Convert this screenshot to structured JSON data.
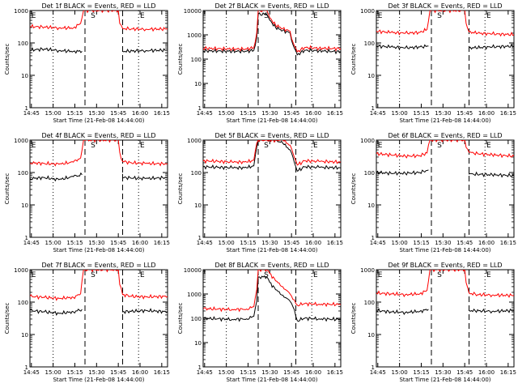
{
  "figure": {
    "panel_order": [
      "1f",
      "2f",
      "3f",
      "4f",
      "5f",
      "6f",
      "7f",
      "8f",
      "9f"
    ]
  },
  "chart_data": [
    {
      "type": "line",
      "panel": "1f",
      "title": "Det 1f BLACK = Events, RED = LLD",
      "xlabel": "Start Time (21-Feb-08 14:44:00)",
      "ylabel": "Counts/sec",
      "y_scale": "log",
      "ylim": [
        1,
        1000
      ],
      "y_ticks": [
        "1",
        "10",
        "100",
        "1000"
      ],
      "x_ticks": [
        "14:45",
        "15:00",
        "15:15",
        "15:30",
        "15:45",
        "16:00",
        "16:15"
      ],
      "xlim": [
        0,
        95
      ],
      "dotted_lines_x": [
        16,
        75
      ],
      "dashed_lines_x": [
        38,
        64
      ],
      "markers": [
        {
          "label": "E",
          "x": 1
        },
        {
          "label": "S",
          "x": 42
        },
        {
          "label": "E",
          "x": 76
        }
      ],
      "series": [
        {
          "name": "Events",
          "color": "#000000",
          "x": [
            0,
            10,
            20,
            30,
            36,
            36,
            62,
            64,
            64,
            80,
            95
          ],
          "y": [
            60,
            65,
            58,
            55,
            55,
            null,
            null,
            60,
            55,
            58,
            60
          ]
        },
        {
          "name": "LLD",
          "color": "#ff0000",
          "x": [
            0,
            10,
            20,
            30,
            35,
            37,
            38,
            61,
            62,
            64,
            70,
            80,
            95
          ],
          "y": [
            320,
            310,
            290,
            290,
            400,
            1000,
            1000,
            1000,
            400,
            280,
            270,
            265,
            270
          ]
        }
      ]
    },
    {
      "type": "line",
      "panel": "2f",
      "title": "Det 2f BLACK = Events, RED = LLD",
      "xlabel": "Start Time (21-Feb-08 14:44:00)",
      "ylabel": "Counts/sec",
      "y_scale": "log",
      "ylim": [
        1,
        10000
      ],
      "y_ticks": [
        "1",
        "10",
        "100",
        "1000",
        "10000"
      ],
      "x_ticks": [
        "14:45",
        "15:00",
        "15:15",
        "15:30",
        "15:45",
        "16:00",
        "16:15"
      ],
      "xlim": [
        0,
        95
      ],
      "dotted_lines_x": [
        16,
        75
      ],
      "dashed_lines_x": [
        38,
        64
      ],
      "markers": [
        {
          "label": "S",
          "x": 42
        },
        {
          "label": "E",
          "x": 76
        }
      ],
      "series": [
        {
          "name": "Events",
          "color": "#000000",
          "x": [
            0,
            10,
            20,
            30,
            35,
            37,
            38,
            44,
            46,
            50,
            55,
            60,
            62,
            64,
            65,
            70,
            80,
            95
          ],
          "y": [
            220,
            215,
            210,
            210,
            230,
            800,
            7000,
            7000,
            4000,
            2000,
            1500,
            1200,
            400,
            220,
            150,
            230,
            220,
            200
          ]
        },
        {
          "name": "LLD",
          "color": "#ff0000",
          "x": [
            0,
            10,
            20,
            30,
            35,
            37,
            38,
            44,
            46,
            50,
            55,
            60,
            62,
            64,
            65,
            70,
            80,
            95
          ],
          "y": [
            280,
            270,
            260,
            260,
            300,
            1200,
            10000,
            10000,
            5000,
            2500,
            1800,
            1400,
            500,
            280,
            200,
            300,
            280,
            270
          ]
        }
      ]
    },
    {
      "type": "line",
      "panel": "3f",
      "title": "Det 3f BLACK = Events, RED = LLD",
      "xlabel": "Start Time (21-Feb-08 14:44:00)",
      "ylabel": "Counts/sec",
      "y_scale": "log",
      "ylim": [
        1,
        1000
      ],
      "y_ticks": [
        "1",
        "10",
        "100",
        "1000"
      ],
      "x_ticks": [
        "14:45",
        "15:00",
        "15:15",
        "15:30",
        "15:45",
        "16:00",
        "16:15"
      ],
      "xlim": [
        0,
        95
      ],
      "dotted_lines_x": [
        16,
        75
      ],
      "dashed_lines_x": [
        38,
        64
      ],
      "markers": [
        {
          "label": "E",
          "x": 1
        },
        {
          "label": "S",
          "x": 42
        },
        {
          "label": "E",
          "x": 76
        }
      ],
      "series": [
        {
          "name": "Events",
          "color": "#000000",
          "x": [
            0,
            10,
            20,
            30,
            36,
            36,
            62,
            64,
            64,
            80,
            95
          ],
          "y": [
            80,
            75,
            70,
            75,
            80,
            null,
            null,
            80,
            70,
            75,
            80
          ]
        },
        {
          "name": "LLD",
          "color": "#ff0000",
          "x": [
            0,
            10,
            20,
            30,
            35,
            37,
            38,
            61,
            62,
            64,
            70,
            80,
            95
          ],
          "y": [
            230,
            210,
            200,
            210,
            260,
            1000,
            1000,
            1000,
            400,
            220,
            200,
            190,
            180
          ]
        }
      ]
    },
    {
      "type": "line",
      "panel": "4f",
      "title": "Det 4f BLACK = Events, RED = LLD",
      "xlabel": "Start Time (21-Feb-08 14:44:00)",
      "ylabel": "Counts/sec",
      "y_scale": "log",
      "ylim": [
        1,
        1000
      ],
      "y_ticks": [
        "1",
        "10",
        "100",
        "1000"
      ],
      "x_ticks": [
        "14:45",
        "15:00",
        "15:15",
        "15:30",
        "15:45",
        "16:00",
        "16:15"
      ],
      "xlim": [
        0,
        95
      ],
      "dotted_lines_x": [
        16,
        75
      ],
      "dashed_lines_x": [
        38,
        64
      ],
      "markers": [
        {
          "label": "E",
          "x": 1
        },
        {
          "label": "S",
          "x": 42
        },
        {
          "label": "E",
          "x": 76
        }
      ],
      "series": [
        {
          "name": "Events",
          "color": "#000000",
          "x": [
            0,
            10,
            20,
            30,
            36,
            36,
            62,
            64,
            64,
            80,
            95
          ],
          "y": [
            65,
            70,
            60,
            75,
            85,
            null,
            null,
            90,
            70,
            65,
            70
          ]
        },
        {
          "name": "LLD",
          "color": "#ff0000",
          "x": [
            0,
            10,
            20,
            30,
            35,
            37,
            38,
            61,
            62,
            64,
            70,
            80,
            95
          ],
          "y": [
            200,
            190,
            180,
            210,
            280,
            1000,
            1000,
            1000,
            420,
            220,
            200,
            190,
            185
          ]
        }
      ]
    },
    {
      "type": "line",
      "panel": "5f",
      "title": "Det 5f BLACK = Events, RED = LLD",
      "xlabel": "Start Time (21-Feb-08 14:44:00)",
      "ylabel": "Counts/sec",
      "y_scale": "log",
      "ylim": [
        1,
        1000
      ],
      "y_ticks": [
        "1",
        "10",
        "100",
        "1000"
      ],
      "x_ticks": [
        "14:45",
        "15:00",
        "15:15",
        "15:30",
        "15:45",
        "16:00",
        "16:15"
      ],
      "xlim": [
        0,
        95
      ],
      "dotted_lines_x": [
        16,
        75
      ],
      "dashed_lines_x": [
        38,
        64
      ],
      "markers": [
        {
          "label": "S",
          "x": 42
        },
        {
          "label": "E",
          "x": 76
        }
      ],
      "series": [
        {
          "name": "Events",
          "color": "#000000",
          "x": [
            0,
            10,
            20,
            30,
            35,
            37,
            38,
            44,
            46,
            50,
            55,
            60,
            62,
            64,
            65,
            70,
            80,
            95
          ],
          "y": [
            150,
            145,
            140,
            140,
            160,
            600,
            1000,
            1000,
            1000,
            1000,
            800,
            500,
            300,
            150,
            110,
            150,
            145,
            140
          ]
        },
        {
          "name": "LLD",
          "color": "#ff0000",
          "x": [
            0,
            10,
            20,
            30,
            35,
            37,
            38,
            44,
            46,
            50,
            55,
            60,
            62,
            64,
            65,
            70,
            80,
            95
          ],
          "y": [
            230,
            220,
            210,
            210,
            240,
            800,
            1000,
            1000,
            1000,
            1000,
            1000,
            700,
            400,
            230,
            170,
            230,
            220,
            210
          ]
        }
      ]
    },
    {
      "type": "line",
      "panel": "6f",
      "title": "Det 6f BLACK = Events, RED = LLD",
      "xlabel": "Start Time (21-Feb-08 14:44:00)",
      "ylabel": "Counts/sec",
      "y_scale": "log",
      "ylim": [
        1,
        1000
      ],
      "y_ticks": [
        "1",
        "10",
        "100",
        "1000"
      ],
      "x_ticks": [
        "14:45",
        "15:00",
        "15:15",
        "15:30",
        "15:45",
        "16:00",
        "16:15"
      ],
      "xlim": [
        0,
        95
      ],
      "dotted_lines_x": [
        16,
        75
      ],
      "dashed_lines_x": [
        38,
        64
      ],
      "markers": [
        {
          "label": "E",
          "x": 1
        },
        {
          "label": "S",
          "x": 42
        },
        {
          "label": "E",
          "x": 76
        }
      ],
      "series": [
        {
          "name": "Events",
          "color": "#000000",
          "x": [
            0,
            10,
            20,
            30,
            36,
            36,
            62,
            64,
            64,
            80,
            95
          ],
          "y": [
            100,
            95,
            95,
            100,
            120,
            null,
            null,
            140,
            90,
            85,
            80
          ]
        },
        {
          "name": "LLD",
          "color": "#ff0000",
          "x": [
            0,
            10,
            20,
            30,
            35,
            37,
            38,
            61,
            62,
            64,
            70,
            80,
            95
          ],
          "y": [
            380,
            350,
            320,
            330,
            400,
            1000,
            1000,
            1000,
            600,
            420,
            380,
            350,
            320
          ]
        }
      ]
    },
    {
      "type": "line",
      "panel": "7f",
      "title": "Det 7f BLACK = Events, RED = LLD",
      "xlabel": "Start Time (21-Feb-08 14:44:00)",
      "ylabel": "Counts/sec",
      "y_scale": "log",
      "ylim": [
        1,
        1000
      ],
      "y_ticks": [
        "1",
        "10",
        "100",
        "1000"
      ],
      "x_ticks": [
        "14:45",
        "15:00",
        "15:15",
        "15:30",
        "15:45",
        "16:00",
        "16:15"
      ],
      "xlim": [
        0,
        95
      ],
      "dotted_lines_x": [
        16,
        75
      ],
      "dashed_lines_x": [
        38,
        64
      ],
      "markers": [
        {
          "label": "E",
          "x": 1
        },
        {
          "label": "S",
          "x": 42
        },
        {
          "label": "E",
          "x": 76
        }
      ],
      "series": [
        {
          "name": "Events",
          "color": "#000000",
          "x": [
            0,
            10,
            20,
            30,
            36,
            36,
            62,
            64,
            64,
            80,
            95
          ],
          "y": [
            55,
            50,
            45,
            50,
            60,
            null,
            null,
            65,
            50,
            55,
            50
          ]
        },
        {
          "name": "LLD",
          "color": "#ff0000",
          "x": [
            0,
            10,
            20,
            30,
            35,
            37,
            38,
            61,
            62,
            64,
            70,
            80,
            95
          ],
          "y": [
            150,
            140,
            130,
            140,
            180,
            1000,
            1000,
            1000,
            350,
            170,
            150,
            145,
            150
          ]
        }
      ]
    },
    {
      "type": "line",
      "panel": "8f",
      "title": "Det 8f BLACK = Events, RED = LLD",
      "xlabel": "Start Time (21-Feb-08 14:44:00)",
      "ylabel": "Counts/sec",
      "y_scale": "log",
      "ylim": [
        1,
        10000
      ],
      "y_ticks": [
        "1",
        "10",
        "100",
        "1000",
        "10000"
      ],
      "x_ticks": [
        "14:45",
        "15:00",
        "15:15",
        "15:30",
        "15:45",
        "16:00",
        "16:15"
      ],
      "xlim": [
        0,
        95
      ],
      "dotted_lines_x": [
        16,
        75
      ],
      "dashed_lines_x": [
        38,
        64
      ],
      "markers": [
        {
          "label": "S",
          "x": 42
        },
        {
          "label": "E",
          "x": 76
        }
      ],
      "series": [
        {
          "name": "Events",
          "color": "#000000",
          "x": [
            0,
            10,
            20,
            30,
            35,
            37,
            38,
            44,
            46,
            50,
            55,
            60,
            62,
            64,
            65,
            70,
            80,
            95
          ],
          "y": [
            100,
            95,
            90,
            95,
            120,
            500,
            5000,
            5000,
            3000,
            1500,
            900,
            500,
            300,
            120,
            80,
            100,
            95,
            90
          ]
        },
        {
          "name": "LLD",
          "color": "#ff0000",
          "x": [
            0,
            10,
            20,
            30,
            35,
            37,
            38,
            44,
            46,
            50,
            55,
            60,
            62,
            64,
            65,
            70,
            80,
            95
          ],
          "y": [
            250,
            240,
            230,
            240,
            300,
            1500,
            10000,
            10000,
            7000,
            3500,
            2000,
            1000,
            600,
            400,
            350,
            400,
            380,
            370
          ]
        }
      ]
    },
    {
      "type": "line",
      "panel": "9f",
      "title": "Det 9f BLACK = Events, RED = LLD",
      "xlabel": "Start Time (21-Feb-08 14:44:00)",
      "ylabel": "Counts/sec",
      "y_scale": "log",
      "ylim": [
        1,
        1000
      ],
      "y_ticks": [
        "1",
        "10",
        "100",
        "1000"
      ],
      "x_ticks": [
        "14:45",
        "15:00",
        "15:15",
        "15:30",
        "15:45",
        "16:00",
        "16:15"
      ],
      "xlim": [
        0,
        95
      ],
      "dotted_lines_x": [
        16,
        75
      ],
      "dashed_lines_x": [
        38,
        64
      ],
      "markers": [
        {
          "label": "E",
          "x": 1
        },
        {
          "label": "S",
          "x": 42
        },
        {
          "label": "E",
          "x": 76
        }
      ],
      "series": [
        {
          "name": "Events",
          "color": "#000000",
          "x": [
            0,
            10,
            20,
            30,
            36,
            36,
            62,
            64,
            64,
            80,
            95
          ],
          "y": [
            55,
            50,
            48,
            52,
            60,
            null,
            null,
            60,
            55,
            52,
            55
          ]
        },
        {
          "name": "LLD",
          "color": "#ff0000",
          "x": [
            0,
            10,
            20,
            30,
            35,
            37,
            38,
            61,
            62,
            64,
            70,
            80,
            95
          ],
          "y": [
            190,
            180,
            170,
            180,
            230,
            1000,
            1000,
            1000,
            400,
            190,
            170,
            165,
            160
          ]
        }
      ]
    }
  ]
}
